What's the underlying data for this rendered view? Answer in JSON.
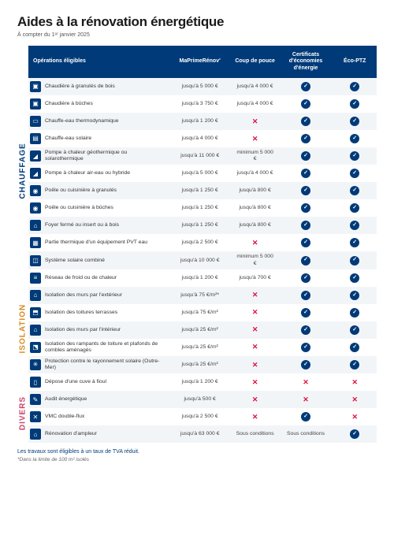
{
  "title": "Aides à la rénovation énergétique",
  "subtitle": "À compter du 1ᵉʳ janvier 2025",
  "colors": {
    "header_bg": "#003a78",
    "header_text": "#ffffff",
    "zebra": "#f2f5f8",
    "cat_chauffage": "#003a78",
    "cat_isolation": "#d68b1f",
    "cat_divers": "#c9456b",
    "check_bg": "#003a78",
    "cross": "#d14"
  },
  "columns": [
    "Opérations éligibles",
    "MaPrimeRénov'",
    "Coup de pouce",
    "Certificats d'économies d'énergie",
    "Éco-PTZ"
  ],
  "categories": [
    {
      "label": "CHAUFFAGE",
      "color": "#003a78",
      "start": 0,
      "end": 12
    },
    {
      "label": "ISOLATION",
      "color": "#d68b1f",
      "start": 12,
      "end": 17
    },
    {
      "label": "DIVERS",
      "color": "#c9456b",
      "start": 17,
      "end": 21
    }
  ],
  "rows": [
    {
      "icon": "▣",
      "label": "Chaudière à granulés de bois",
      "mpr": "jusqu'à 5 000 €",
      "coup": "jusqu'à 4 000 €",
      "cee": "check",
      "ptz": "check"
    },
    {
      "icon": "▣",
      "label": "Chaudière à bûches",
      "mpr": "jusqu'à 3 750 €",
      "coup": "jusqu'à 4 000 €",
      "cee": "check",
      "ptz": "check"
    },
    {
      "icon": "▭",
      "label": "Chauffe-eau thermodynamique",
      "mpr": "jusqu'à 1 200 €",
      "coup": "cross",
      "cee": "check",
      "ptz": "check"
    },
    {
      "icon": "▤",
      "label": "Chauffe-eau solaire",
      "mpr": "jusqu'à 4 000 €",
      "coup": "cross",
      "cee": "check",
      "ptz": "check"
    },
    {
      "icon": "◢",
      "label": "Pompe à chaleur géothermique ou solarothermique",
      "mpr": "jusqu'à 11 000 €",
      "coup": "minimum 5 000 €",
      "cee": "check",
      "ptz": "check"
    },
    {
      "icon": "◢",
      "label": "Pompe à chaleur air-eau ou hybride",
      "mpr": "jusqu'à 5 000 €",
      "coup": "jusqu'à 4 000 €",
      "cee": "check",
      "ptz": "check"
    },
    {
      "icon": "◉",
      "label": "Poêle ou cuisinière à granulés",
      "mpr": "jusqu'à 1 250 €",
      "coup": "jusqu'à 800 €",
      "cee": "check",
      "ptz": "check"
    },
    {
      "icon": "◉",
      "label": "Poêle ou cuisinière à bûches",
      "mpr": "jusqu'à 1 250 €",
      "coup": "jusqu'à 800 €",
      "cee": "check",
      "ptz": "check"
    },
    {
      "icon": "⌂",
      "label": "Foyer fermé ou insert ou à bois",
      "mpr": "jusqu'à 1 250 €",
      "coup": "jusqu'à 800 €",
      "cee": "check",
      "ptz": "check"
    },
    {
      "icon": "▦",
      "label": "Partie thermique d'un équipement PVT eau",
      "mpr": "jusqu'à 2 500 €",
      "coup": "cross",
      "cee": "check",
      "ptz": "check"
    },
    {
      "icon": "◫",
      "label": "Système solaire combiné",
      "mpr": "jusqu'à 10 000 €",
      "coup": "minimum 5 000 €",
      "cee": "check",
      "ptz": "check"
    },
    {
      "icon": "≡",
      "label": "Réseau de froid ou de chaleur",
      "mpr": "jusqu'à 1 200 €",
      "coup": "jusqu'à 700 €",
      "cee": "check",
      "ptz": "check"
    },
    {
      "icon": "⌂",
      "label": "Isolation des murs par l'extérieur",
      "mpr": "jusqu'à 75 €/m²*",
      "coup": "cross",
      "cee": "check",
      "ptz": "check"
    },
    {
      "icon": "⬒",
      "label": "Isolation des toitures terrasses",
      "mpr": "jusqu'à 75 €/m²",
      "coup": "cross",
      "cee": "check",
      "ptz": "check"
    },
    {
      "icon": "⌂",
      "label": "Isolation des murs par l'intérieur",
      "mpr": "jusqu'à 25 €/m²",
      "coup": "cross",
      "cee": "check",
      "ptz": "check"
    },
    {
      "icon": "⬔",
      "label": "Isolation des rampants de toiture et plafonds de combles aménagés",
      "mpr": "jusqu'à 25 €/m²",
      "coup": "cross",
      "cee": "check",
      "ptz": "check"
    },
    {
      "icon": "✳",
      "label": "Protection contre le rayonnement solaire (Outre-Mer)",
      "mpr": "jusqu'à 25 €/m²",
      "coup": "cross",
      "cee": "check",
      "ptz": "check"
    },
    {
      "icon": "▯",
      "label": "Dépose d'une cuve à fioul",
      "mpr": "jusqu'à 1 200 €",
      "coup": "cross",
      "cee": "cross",
      "ptz": "cross"
    },
    {
      "icon": "✎",
      "label": "Audit énergétique",
      "mpr": "jusqu'à 500 €",
      "coup": "cross",
      "cee": "cross",
      "ptz": "cross"
    },
    {
      "icon": "✕",
      "label": "VMC double-flux",
      "mpr": "jusqu'à 2 500 €",
      "coup": "cross",
      "cee": "check",
      "ptz": "cross"
    },
    {
      "icon": "⌂",
      "label": "Rénovation d'ampleur",
      "mpr": "jusqu'à 63 000 €",
      "coup": "Sous conditions",
      "cee": "Sous conditions",
      "ptz": "check"
    }
  ],
  "footnote1": "Les travaux sont éligibles à un taux de TVA réduit.",
  "footnote2": "*Dans la limite de 100 m² isolés"
}
